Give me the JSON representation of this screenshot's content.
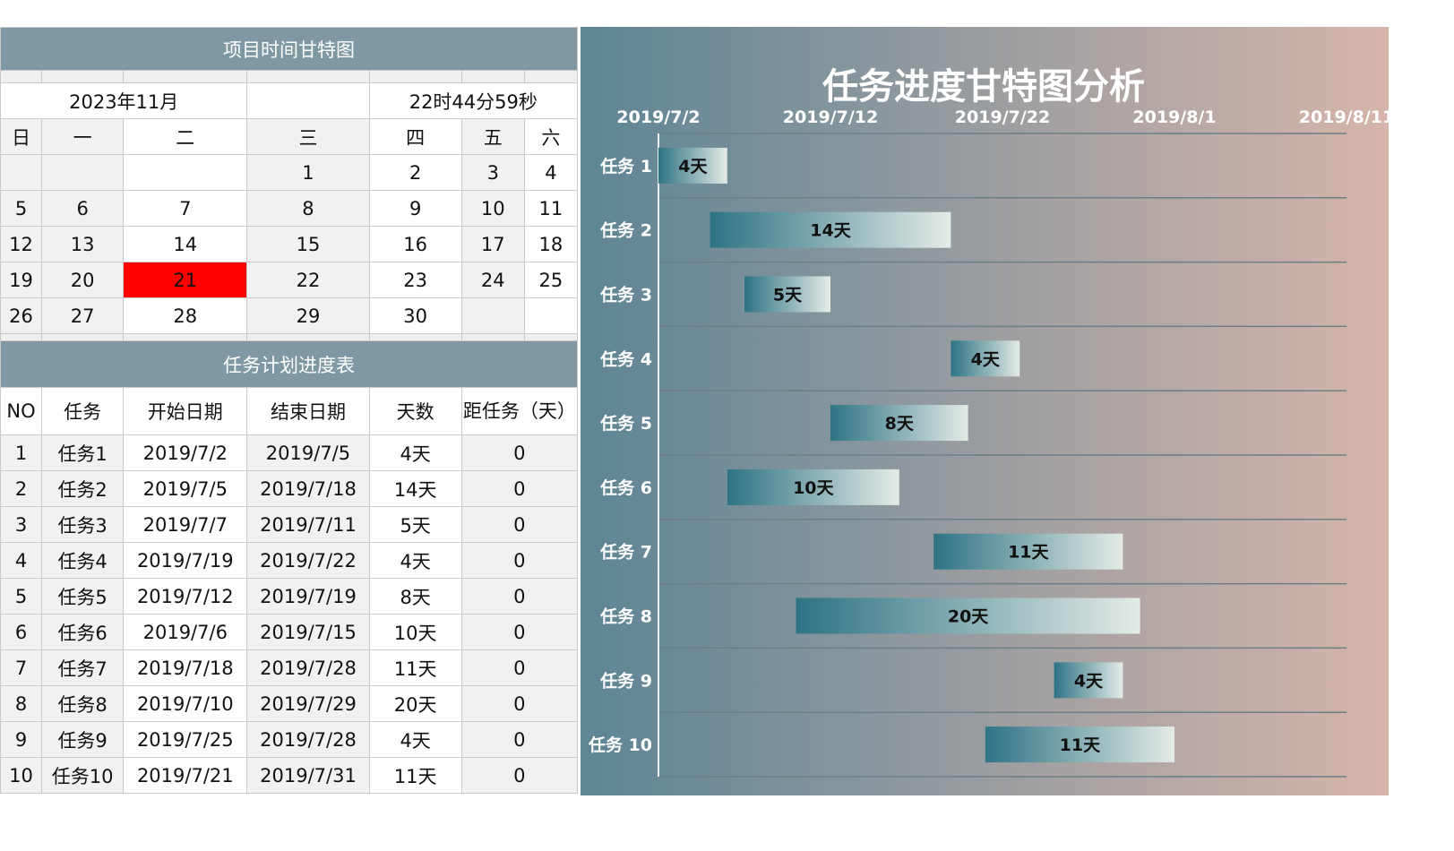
{
  "calendar": {
    "title": "项目时间甘特图",
    "month": "2023年11月",
    "clock": "22时44分59秒",
    "weekdays": [
      "日",
      "一",
      "二",
      "三",
      "四",
      "五",
      "六"
    ],
    "weeks": [
      [
        "",
        "",
        "",
        "1",
        "2",
        "3",
        "4"
      ],
      [
        "5",
        "6",
        "7",
        "8",
        "9",
        "10",
        "11"
      ],
      [
        "12",
        "13",
        "14",
        "15",
        "16",
        "17",
        "18"
      ],
      [
        "19",
        "20",
        "21",
        "22",
        "23",
        "24",
        "25"
      ],
      [
        "26",
        "27",
        "28",
        "29",
        "30",
        "",
        ""
      ]
    ],
    "today": "21"
  },
  "task_table": {
    "title": "任务计划进度表",
    "headers": [
      "NO",
      "任务",
      "开始日期",
      "结束日期",
      "天数",
      "距任务（天）"
    ],
    "rows": [
      [
        "1",
        "任务1",
        "2019/7/2",
        "2019/7/5",
        "4天",
        "0"
      ],
      [
        "2",
        "任务2",
        "2019/7/5",
        "2019/7/18",
        "14天",
        "0"
      ],
      [
        "3",
        "任务3",
        "2019/7/7",
        "2019/7/11",
        "5天",
        "0"
      ],
      [
        "4",
        "任务4",
        "2019/7/19",
        "2019/7/22",
        "4天",
        "0"
      ],
      [
        "5",
        "任务5",
        "2019/7/12",
        "2019/7/19",
        "8天",
        "0"
      ],
      [
        "6",
        "任务6",
        "2019/7/6",
        "2019/7/15",
        "10天",
        "0"
      ],
      [
        "7",
        "任务7",
        "2019/7/18",
        "2019/7/28",
        "11天",
        "0"
      ],
      [
        "8",
        "任务8",
        "2019/7/10",
        "2019/7/29",
        "20天",
        "0"
      ],
      [
        "9",
        "任务9",
        "2019/7/25",
        "2019/7/28",
        "4天",
        "0"
      ],
      [
        "10",
        "任务10",
        "2019/7/21",
        "2019/7/31",
        "11天",
        "0"
      ]
    ]
  },
  "colors": {
    "header_bar": "#7f98a3",
    "today": "#ff0000",
    "chart_bg_left": "#5e8595",
    "chart_bg_right": "#d6b5ab",
    "bar_dark": "#2e7384",
    "bar_light": "#e4ebe6"
  },
  "chart_data": {
    "type": "bar",
    "orientation": "horizontal-gantt",
    "title": "任务进度甘特图分析",
    "categories": [
      "任务 1",
      "任务 2",
      "任务 3",
      "任务 4",
      "任务 5",
      "任务 6",
      "任务 7",
      "任务 8",
      "任务 9",
      "任务 10"
    ],
    "start": [
      "2019-07-02",
      "2019-07-05",
      "2019-07-07",
      "2019-07-19",
      "2019-07-12",
      "2019-07-06",
      "2019-07-18",
      "2019-07-10",
      "2019-07-25",
      "2019-07-21"
    ],
    "duration_days": [
      4,
      14,
      5,
      4,
      8,
      10,
      11,
      20,
      4,
      11
    ],
    "data_labels": [
      "4天",
      "14天",
      "5天",
      "4天",
      "8天",
      "10天",
      "11天",
      "20天",
      "4天",
      "11天"
    ],
    "x_axis_ticks": [
      "2019/7/2",
      "2019/7/12",
      "2019/7/22",
      "2019/8/1",
      "2019/8/11"
    ],
    "x_range": [
      "2019-07-02",
      "2019-08-11"
    ],
    "axis_position": "top",
    "grid": true,
    "legend": "none"
  }
}
